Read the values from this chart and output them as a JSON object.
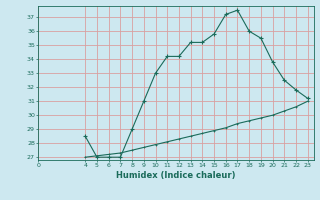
{
  "xlabel": "Humidex (Indice chaleur)",
  "ylabel": "",
  "bg_color": "#cde8f0",
  "line_color": "#1a6b5a",
  "grid_color": "#d9a0a0",
  "xlim": [
    0,
    23.5
  ],
  "ylim": [
    26.8,
    37.8
  ],
  "yticks": [
    27,
    28,
    29,
    30,
    31,
    32,
    33,
    34,
    35,
    36,
    37
  ],
  "xticks": [
    0,
    4,
    5,
    6,
    7,
    8,
    9,
    10,
    11,
    12,
    13,
    14,
    15,
    16,
    17,
    18,
    19,
    20,
    21,
    22,
    23
  ],
  "upper_x": [
    4,
    5,
    6,
    7,
    8,
    9,
    10,
    11,
    12,
    13,
    14,
    15,
    16,
    17,
    18,
    19,
    20,
    21,
    22,
    23
  ],
  "upper_y": [
    28.5,
    27.0,
    27.0,
    27.0,
    29.0,
    31.0,
    33.0,
    34.2,
    34.2,
    35.2,
    35.2,
    35.8,
    37.2,
    37.5,
    36.0,
    35.5,
    33.8,
    32.5,
    31.8,
    31.2
  ],
  "lower_x": [
    4,
    5,
    6,
    7,
    8,
    9,
    10,
    11,
    12,
    13,
    14,
    15,
    16,
    17,
    18,
    19,
    20,
    21,
    22,
    23
  ],
  "lower_y": [
    27.0,
    27.1,
    27.2,
    27.3,
    27.5,
    27.7,
    27.9,
    28.1,
    28.3,
    28.5,
    28.7,
    28.9,
    29.1,
    29.4,
    29.6,
    29.8,
    30.0,
    30.3,
    30.6,
    31.0
  ],
  "font_size_ticks": 4.5,
  "font_size_xlabel": 6.0,
  "marker_size": 3.0,
  "line_width": 0.8
}
